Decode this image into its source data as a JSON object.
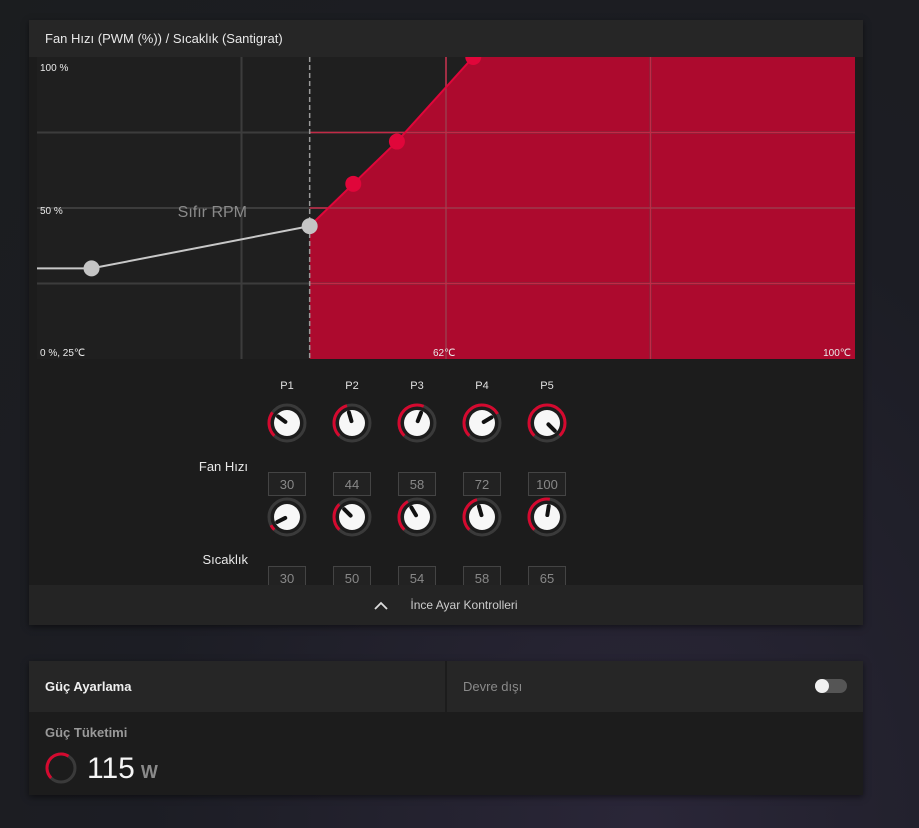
{
  "fan_panel": {
    "title": "Fan Hızı (PWM (%)) / Sıcaklık (Santigrat)",
    "chart": {
      "y_top_label": "100 %",
      "y_mid_label": "50 %",
      "origin_label": "0 %, 25℃",
      "x_mid_label": "62℃",
      "x_max_label": "100℃",
      "zero_rpm_label": "Sıfır RPM"
    },
    "columns": [
      "P1",
      "P2",
      "P3",
      "P4",
      "P5"
    ],
    "fan_speed_label": "Fan Hızı",
    "temperature_label": "Sıcaklık",
    "fan_speed_values": [
      "30",
      "44",
      "58",
      "72",
      "100"
    ],
    "temperature_values": [
      "30",
      "50",
      "54",
      "58",
      "65"
    ],
    "footer_label": "İnce Ayar Kontrolleri"
  },
  "chart_data": {
    "type": "line",
    "xlabel": "Sıcaklık (Santigrat)",
    "ylabel": "Fan Hızı (PWM (%))",
    "xlim": [
      25,
      100
    ],
    "ylim": [
      0,
      100
    ],
    "zero_rpm_threshold": 50,
    "series": [
      {
        "x": [
          25,
          30,
          50,
          54,
          58,
          65
        ],
        "y": [
          30,
          30,
          44,
          58,
          72,
          100
        ]
      }
    ],
    "colors": {
      "line": "#c8c8c8",
      "active": "#e0063a",
      "fill": "#ad0a2e",
      "grid": "#3c3c3c"
    }
  },
  "power_panel": {
    "title": "Güç Ayarlama",
    "status": "Devre dışı",
    "toggle_on": false,
    "consumption_label": "Güç Tüketimi",
    "value": "115",
    "unit": "W",
    "gauge_level": 0.62
  }
}
